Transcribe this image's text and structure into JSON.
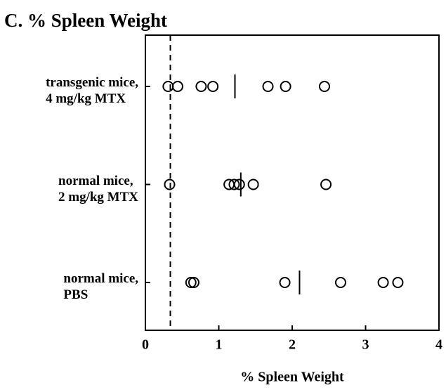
{
  "chart_data": {
    "type": "dot",
    "title": "C. % Spleen Weight",
    "xlabel": "% Spleen Weight",
    "categories": [
      "transgenic mice,\n4 mg/kg MTX",
      "normal mice,\n2 mg/kg MTX",
      "normal mice,\nPBS"
    ],
    "values": [
      [
        0.31,
        0.44,
        0.76,
        0.92,
        1.67,
        1.91,
        2.44
      ],
      [
        0.33,
        1.14,
        1.21,
        1.28,
        1.47,
        2.46
      ],
      [
        0.62,
        0.66,
        1.9,
        2.66,
        3.24,
        3.44
      ]
    ],
    "medians": [
      1.22,
      1.3,
      2.1
    ],
    "reference_line": 0.34,
    "xlim": [
      0,
      4
    ],
    "xticks": [
      0,
      1,
      2,
      3,
      4
    ],
    "color": "#000000"
  }
}
